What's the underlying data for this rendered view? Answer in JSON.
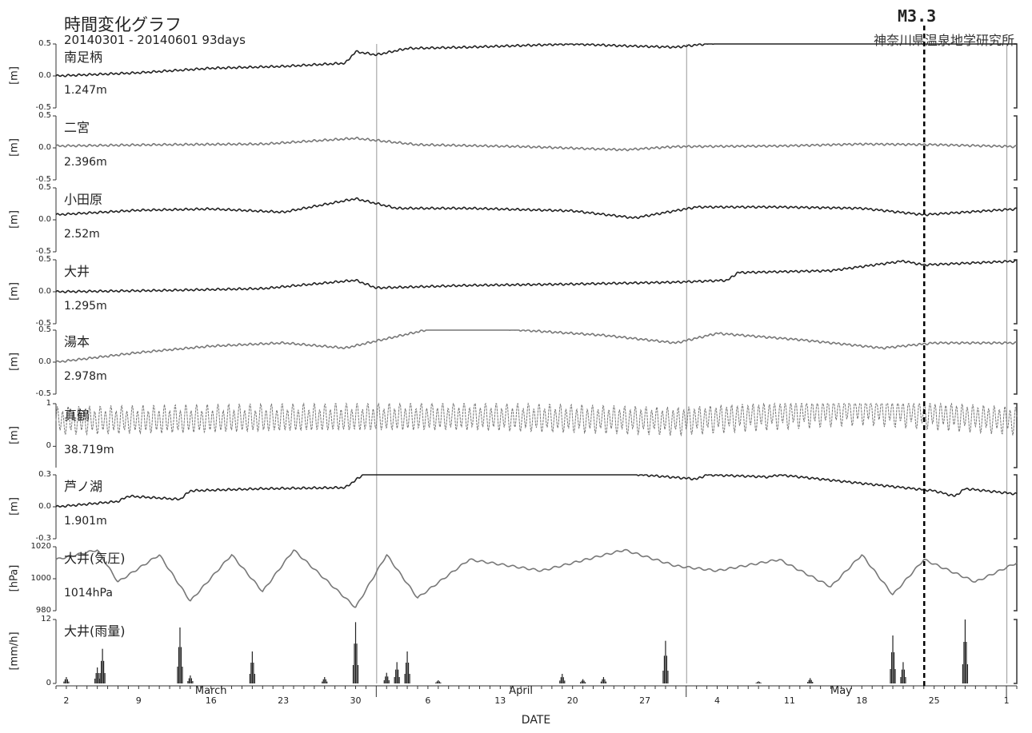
{
  "header": {
    "title": "時間変化グラフ",
    "range": "20140301 - 20140601 93days",
    "institute": "神奈川県温泉地学研究所"
  },
  "event": {
    "label": "M3.3",
    "day": 84
  },
  "colors": {
    "dark": "#222222",
    "gray": "#777777",
    "event": "#000000"
  },
  "chart_data": {
    "type": "line",
    "x_axis": {
      "title": "DATE",
      "start": "2014-03-01",
      "end": "2014-06-01",
      "ticks": [
        {
          "label": "2",
          "day": 1
        },
        {
          "label": "9",
          "day": 8
        },
        {
          "label": "16",
          "day": 15
        },
        {
          "label": "23",
          "day": 22
        },
        {
          "label": "30",
          "day": 29
        },
        {
          "label": "6",
          "day": 36
        },
        {
          "label": "13",
          "day": 43
        },
        {
          "label": "20",
          "day": 50
        },
        {
          "label": "27",
          "day": 57
        },
        {
          "label": "4",
          "day": 64
        },
        {
          "label": "11",
          "day": 71
        },
        {
          "label": "18",
          "day": 78
        },
        {
          "label": "25",
          "day": 85
        },
        {
          "label": "1",
          "day": 92
        }
      ],
      "months": [
        {
          "label": "March",
          "day": 15
        },
        {
          "label": "April",
          "day": 45
        },
        {
          "label": "May",
          "day": 76
        }
      ],
      "month_boundaries": [
        31,
        61,
        92
      ]
    },
    "panels": [
      {
        "name": "南足柄",
        "ref": "1.247m",
        "ylabel": "[m]",
        "ylim": [
          -0.5,
          0.5
        ],
        "ticks": [
          "0.5",
          "0.0",
          "-0.5"
        ],
        "tickvals": [
          0.5,
          0,
          -0.5
        ],
        "color": "dark",
        "kind": "line",
        "key_points": [
          [
            0,
            0.0
          ],
          [
            8,
            0.05
          ],
          [
            15,
            0.12
          ],
          [
            22,
            0.15
          ],
          [
            28,
            0.2
          ],
          [
            29,
            0.38
          ],
          [
            31,
            0.33
          ],
          [
            34,
            0.43
          ],
          [
            40,
            0.45
          ],
          [
            50,
            0.5
          ],
          [
            55,
            0.47
          ],
          [
            60,
            0.45
          ],
          [
            64,
            0.52
          ],
          [
            70,
            0.55
          ],
          [
            75,
            0.52
          ],
          [
            80,
            0.58
          ],
          [
            85,
            0.6
          ],
          [
            93,
            0.62
          ]
        ]
      },
      {
        "name": "二宮",
        "ref": "2.396m",
        "ylabel": "[m]",
        "ylim": [
          -0.5,
          0.5
        ],
        "ticks": [
          "0.5",
          "0.0",
          "-0.5"
        ],
        "tickvals": [
          0.5,
          0,
          -0.5
        ],
        "color": "gray",
        "kind": "line",
        "key_points": [
          [
            0,
            0.03
          ],
          [
            10,
            0.05
          ],
          [
            20,
            0.06
          ],
          [
            29,
            0.15
          ],
          [
            35,
            0.05
          ],
          [
            45,
            0.02
          ],
          [
            55,
            -0.03
          ],
          [
            60,
            0.02
          ],
          [
            70,
            0.03
          ],
          [
            78,
            0.06
          ],
          [
            85,
            0.05
          ],
          [
            93,
            0.02
          ]
        ]
      },
      {
        "name": "小田原",
        "ref": "2.52m",
        "ylabel": "[m]",
        "ylim": [
          -0.5,
          0.5
        ],
        "ticks": [
          "0.5",
          "0.0",
          "-0.5"
        ],
        "tickvals": [
          0.5,
          0,
          -0.5
        ],
        "color": "dark",
        "kind": "line",
        "key_points": [
          [
            0,
            0.08
          ],
          [
            8,
            0.15
          ],
          [
            15,
            0.17
          ],
          [
            22,
            0.12
          ],
          [
            29,
            0.33
          ],
          [
            33,
            0.18
          ],
          [
            40,
            0.18
          ],
          [
            50,
            0.14
          ],
          [
            56,
            0.03
          ],
          [
            62,
            0.2
          ],
          [
            70,
            0.2
          ],
          [
            78,
            0.18
          ],
          [
            84,
            0.08
          ],
          [
            93,
            0.17
          ]
        ]
      },
      {
        "name": "大井",
        "ref": "1.295m",
        "ylabel": "[m]",
        "ylim": [
          -0.5,
          0.5
        ],
        "ticks": [
          "0.5",
          "0.0",
          "-0.5"
        ],
        "tickvals": [
          0.5,
          0,
          -0.5
        ],
        "color": "dark",
        "kind": "line",
        "key_points": [
          [
            0,
            0.0
          ],
          [
            10,
            0.02
          ],
          [
            20,
            0.05
          ],
          [
            29,
            0.18
          ],
          [
            31,
            0.06
          ],
          [
            40,
            0.1
          ],
          [
            50,
            0.12
          ],
          [
            60,
            0.15
          ],
          [
            65,
            0.18
          ],
          [
            66,
            0.3
          ],
          [
            75,
            0.33
          ],
          [
            82,
            0.48
          ],
          [
            84,
            0.42
          ],
          [
            93,
            0.48
          ]
        ]
      },
      {
        "name": "湯本",
        "ref": "2.978m",
        "ylabel": "[m]",
        "ylim": [
          -0.5,
          0.5
        ],
        "ticks": [
          "0.5",
          "0.0",
          "-0.5"
        ],
        "tickvals": [
          0.5,
          0,
          -0.5
        ],
        "color": "gray",
        "kind": "line",
        "key_points": [
          [
            0,
            0.0
          ],
          [
            8,
            0.15
          ],
          [
            15,
            0.25
          ],
          [
            22,
            0.3
          ],
          [
            28,
            0.22
          ],
          [
            31,
            0.33
          ],
          [
            38,
            0.58
          ],
          [
            45,
            0.5
          ],
          [
            53,
            0.42
          ],
          [
            60,
            0.3
          ],
          [
            64,
            0.45
          ],
          [
            72,
            0.35
          ],
          [
            80,
            0.22
          ],
          [
            85,
            0.3
          ],
          [
            93,
            0.3
          ]
        ]
      },
      {
        "name": "真鶴",
        "ref": "38.719m",
        "ylabel": "[m]",
        "ylim": [
          -0.5,
          1.0
        ],
        "ticks": [
          "1",
          "0"
        ],
        "tickvals": [
          1,
          0
        ],
        "color": "gray",
        "kind": "tidal",
        "key_points": [
          [
            0,
            0.6
          ],
          [
            20,
            0.65
          ],
          [
            40,
            0.7
          ],
          [
            60,
            0.6
          ],
          [
            78,
            0.85
          ],
          [
            93,
            0.6
          ]
        ]
      },
      {
        "name": "芦ノ湖",
        "ref": "1.901m",
        "ylabel": "[m]",
        "ylim": [
          -0.3,
          0.3
        ],
        "ticks": [
          "0.3",
          "0.0",
          "-0.3"
        ],
        "tickvals": [
          0.3,
          0,
          -0.3
        ],
        "color": "dark",
        "kind": "line",
        "key_points": [
          [
            0,
            0.0
          ],
          [
            6,
            0.05
          ],
          [
            7,
            0.1
          ],
          [
            12,
            0.07
          ],
          [
            13,
            0.15
          ],
          [
            20,
            0.17
          ],
          [
            28,
            0.18
          ],
          [
            30,
            0.32
          ],
          [
            35,
            0.4
          ],
          [
            50,
            0.35
          ],
          [
            62,
            0.26
          ],
          [
            63,
            0.3
          ],
          [
            69,
            0.28
          ],
          [
            70,
            0.3
          ],
          [
            80,
            0.2
          ],
          [
            85,
            0.15
          ],
          [
            87,
            0.1
          ],
          [
            88,
            0.17
          ],
          [
            93,
            0.12
          ]
        ]
      },
      {
        "name": "大井(気圧)",
        "ref": "1014hPa",
        "ylabel": "[hPa]",
        "ylim": [
          980,
          1020
        ],
        "ticks": [
          "1020",
          "1000",
          "980"
        ],
        "tickvals": [
          1020,
          1000,
          980
        ],
        "color": "gray",
        "kind": "pressure",
        "key_points": [
          [
            0,
            1012
          ],
          [
            4,
            1018
          ],
          [
            6,
            998
          ],
          [
            10,
            1015
          ],
          [
            13,
            986
          ],
          [
            17,
            1015
          ],
          [
            20,
            992
          ],
          [
            23,
            1018
          ],
          [
            29,
            982
          ],
          [
            32,
            1015
          ],
          [
            35,
            988
          ],
          [
            40,
            1012
          ],
          [
            47,
            1005
          ],
          [
            55,
            1018
          ],
          [
            60,
            1008
          ],
          [
            64,
            1005
          ],
          [
            70,
            1012
          ],
          [
            75,
            995
          ],
          [
            78,
            1015
          ],
          [
            81,
            990
          ],
          [
            84,
            1012
          ],
          [
            89,
            998
          ],
          [
            93,
            1010
          ]
        ]
      },
      {
        "name": "大井(雨量)",
        "ref": "",
        "ylabel": "[mm/h]",
        "ylim": [
          0,
          12
        ],
        "ticks": [
          "12",
          "0"
        ],
        "tickvals": [
          12,
          0
        ],
        "color": "dark",
        "kind": "bar",
        "events": [
          [
            1,
            1.2
          ],
          [
            4,
            3.0
          ],
          [
            4.5,
            6.5
          ],
          [
            12,
            10.5
          ],
          [
            13,
            1.5
          ],
          [
            19,
            6.0
          ],
          [
            26,
            1.2
          ],
          [
            29,
            11.5
          ],
          [
            32,
            2.0
          ],
          [
            33,
            4.0
          ],
          [
            34,
            6.0
          ],
          [
            37,
            0.6
          ],
          [
            49,
            1.8
          ],
          [
            51,
            0.8
          ],
          [
            53,
            1.2
          ],
          [
            59,
            8.0
          ],
          [
            68,
            0.4
          ],
          [
            73,
            1.0
          ],
          [
            81,
            9.0
          ],
          [
            82,
            4.0
          ],
          [
            88,
            12.0
          ]
        ]
      }
    ]
  }
}
